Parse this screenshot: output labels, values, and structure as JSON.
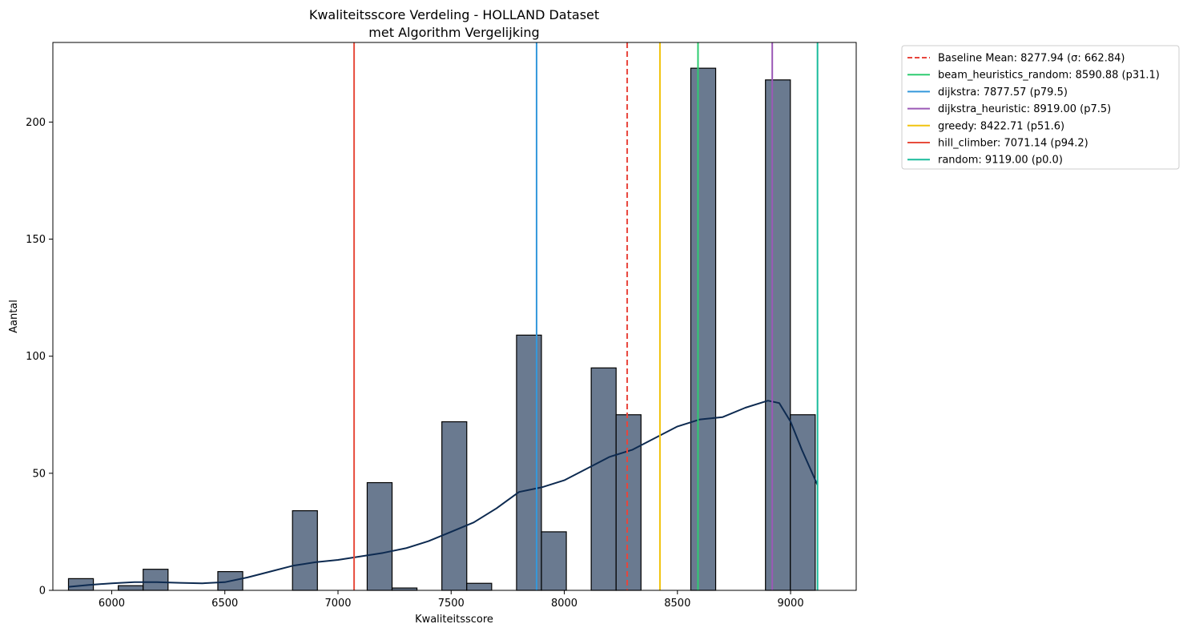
{
  "chart_data": {
    "type": "bar",
    "title_line1": "Kwaliteitsscore Verdeling - HOLLAND Dataset",
    "title_line2": "met Algorithm Vergelijking",
    "xlabel": "Kwaliteitsscore",
    "ylabel": "Aantal",
    "xlim": [
      5740,
      9290
    ],
    "ylim": [
      0,
      234
    ],
    "xticks": [
      6000,
      6500,
      7000,
      7500,
      8000,
      8500,
      9000
    ],
    "yticks": [
      0,
      50,
      100,
      150,
      200
    ],
    "grid": false,
    "legend_position": "outside-top-right",
    "bar_color": "#6a7a90",
    "kde_color": "#0d2a50",
    "bins": [
      {
        "start": 5809,
        "end": 5919,
        "count": 5
      },
      {
        "start": 6029,
        "end": 6139,
        "count": 2
      },
      {
        "start": 6139,
        "end": 6249,
        "count": 9
      },
      {
        "start": 6469,
        "end": 6579,
        "count": 8
      },
      {
        "start": 6799,
        "end": 6909,
        "count": 34
      },
      {
        "start": 7129,
        "end": 7239,
        "count": 46
      },
      {
        "start": 7239,
        "end": 7349,
        "count": 1
      },
      {
        "start": 7459,
        "end": 7569,
        "count": 72
      },
      {
        "start": 7569,
        "end": 7679,
        "count": 3
      },
      {
        "start": 7789,
        "end": 7899,
        "count": 109
      },
      {
        "start": 7899,
        "end": 8009,
        "count": 25
      },
      {
        "start": 8119,
        "end": 8229,
        "count": 95
      },
      {
        "start": 8229,
        "end": 8339,
        "count": 75
      },
      {
        "start": 8559,
        "end": 8669,
        "count": 223
      },
      {
        "start": 8889,
        "end": 8999,
        "count": 218
      },
      {
        "start": 8999,
        "end": 9109,
        "count": 75
      }
    ],
    "kde": {
      "x": [
        5809,
        5900,
        6000,
        6100,
        6200,
        6300,
        6400,
        6500,
        6600,
        6700,
        6800,
        6900,
        7000,
        7100,
        7200,
        7300,
        7400,
        7500,
        7600,
        7700,
        7800,
        7900,
        8000,
        8100,
        8200,
        8300,
        8400,
        8500,
        8600,
        8700,
        8800,
        8900,
        8950,
        9000,
        9050,
        9119
      ],
      "y": [
        1.5,
        2.3,
        3,
        3.5,
        3.5,
        3.2,
        3.0,
        3.5,
        5.5,
        8,
        10.5,
        12,
        13,
        14.5,
        16,
        18,
        21,
        25,
        29,
        35,
        42,
        44,
        47,
        52,
        57,
        60,
        65,
        70,
        73,
        74,
        78,
        81,
        80,
        72,
        60,
        45
      ]
    },
    "reference_lines": [
      {
        "label": "Baseline Mean: 8277.94 (σ: 662.84)",
        "x": 8277.94,
        "color": "#e8453c",
        "dashed": true
      },
      {
        "label": "beam_heuristics_random: 8590.88 (p31.1)",
        "x": 8590.88,
        "color": "#2ecc71",
        "dashed": false
      },
      {
        "label": "dijkstra: 7877.57 (p79.5)",
        "x": 7877.57,
        "color": "#3498db",
        "dashed": false
      },
      {
        "label": "dijkstra_heuristic: 8919.00 (p7.5)",
        "x": 8919.0,
        "color": "#9b59b6",
        "dashed": false
      },
      {
        "label": "greedy: 8422.71 (p51.6)",
        "x": 8422.71,
        "color": "#f1c40f",
        "dashed": false
      },
      {
        "label": "hill_climber: 7071.14 (p94.2)",
        "x": 7071.14,
        "color": "#e74c3c",
        "dashed": false
      },
      {
        "label": "random: 9119.00 (p0.0)",
        "x": 9119.0,
        "color": "#1abc9c",
        "dashed": false
      }
    ]
  }
}
